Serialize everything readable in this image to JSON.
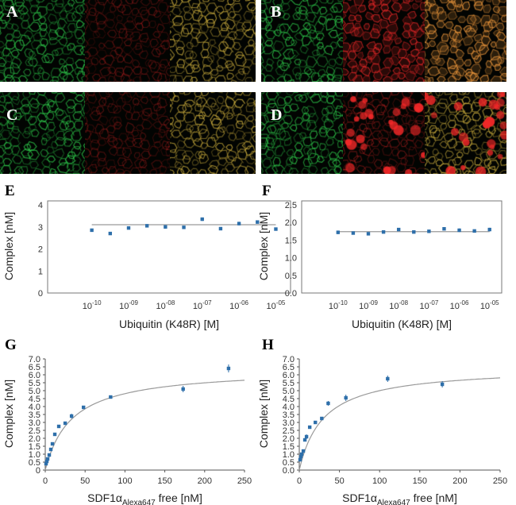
{
  "micrographs": [
    {
      "label": "A",
      "channels": [
        "green",
        "red",
        "merge"
      ],
      "red_intensity": "dim"
    },
    {
      "label": "B",
      "channels": [
        "green",
        "red",
        "merge"
      ],
      "red_intensity": "bright"
    },
    {
      "label": "C",
      "channels": [
        "green",
        "red",
        "merge"
      ],
      "red_intensity": "dim"
    },
    {
      "label": "D",
      "channels": [
        "green",
        "red",
        "merge"
      ],
      "red_intensity": "spotty"
    }
  ],
  "colors": {
    "green": "#2ec84a",
    "red": "#e12828",
    "merge": "#c8a63a",
    "points": "#2e6faa",
    "fit": "#9a9a9a",
    "plot_border": "#777777"
  },
  "chart_data": [
    {
      "panel": "E",
      "type": "scatter",
      "xscale": "log10",
      "x": [
        -10,
        -9.5,
        -9,
        -8.5,
        -8,
        -7.5,
        -7,
        -6.5,
        -6,
        -5.5,
        -5
      ],
      "y": [
        2.85,
        2.7,
        2.95,
        3.05,
        3.0,
        2.98,
        3.35,
        2.92,
        3.15,
        3.22,
        2.9
      ],
      "error": [
        0.07,
        0.06,
        0.06,
        0.07,
        0.08,
        0.05,
        0.08,
        0.06,
        0.08,
        0.07,
        0.06
      ],
      "fit": {
        "type": "constant",
        "value": 3.1
      },
      "xlabel": "Ubiquitin (K48R) [M]",
      "ylabel": "Complex [nM]",
      "ylim": [
        0,
        4
      ],
      "yticks": [
        "0",
        "1",
        "2",
        "3",
        "4"
      ],
      "xticks": [
        {
          "value": -10,
          "base": "10",
          "exp": "-10"
        },
        {
          "value": -9,
          "base": "10",
          "exp": "-09"
        },
        {
          "value": -8,
          "base": "10",
          "exp": "-08"
        },
        {
          "value": -7,
          "base": "10",
          "exp": "-07"
        },
        {
          "value": -6,
          "base": "10",
          "exp": "-06"
        },
        {
          "value": -5,
          "base": "10",
          "exp": "-05"
        }
      ],
      "xlim": [
        -11.2,
        -4.6
      ]
    },
    {
      "panel": "F",
      "type": "scatter",
      "xscale": "log10",
      "x": [
        -10,
        -9.5,
        -9,
        -8.5,
        -8,
        -7.5,
        -7,
        -6.5,
        -6,
        -5.5,
        -5
      ],
      "y": [
        1.72,
        1.7,
        1.68,
        1.73,
        1.8,
        1.73,
        1.75,
        1.82,
        1.78,
        1.76,
        1.8
      ],
      "error": [
        0.05,
        0.04,
        0.04,
        0.03,
        0.04,
        0.04,
        0.04,
        0.04,
        0.05,
        0.03,
        0.05
      ],
      "fit": {
        "type": "constant",
        "value": 1.74
      },
      "xlabel": "Ubiquitin (K48R) [M]",
      "ylabel": "Complex [nM]",
      "ylim": [
        0,
        2.5
      ],
      "yticks": [
        "0.0",
        "0.5",
        "1.0",
        "1.5",
        "2.0",
        "2.5"
      ],
      "xticks": [
        {
          "value": -10,
          "base": "10",
          "exp": "-10"
        },
        {
          "value": -9,
          "base": "10",
          "exp": "-09"
        },
        {
          "value": -8,
          "base": "10",
          "exp": "-08"
        },
        {
          "value": -7,
          "base": "10",
          "exp": "-07"
        },
        {
          "value": -6,
          "base": "10",
          "exp": "-06"
        },
        {
          "value": -5,
          "base": "10",
          "exp": "-05"
        }
      ],
      "xlim": [
        -11.2,
        -4.6
      ]
    },
    {
      "panel": "G",
      "type": "scatter",
      "x": [
        1,
        2,
        3,
        5,
        7,
        9,
        12,
        17,
        25,
        33,
        48,
        82,
        173,
        230
      ],
      "y": [
        0.4,
        0.55,
        0.7,
        0.95,
        1.3,
        1.65,
        2.25,
        2.75,
        2.95,
        3.4,
        3.95,
        4.6,
        5.1,
        6.4
      ],
      "error": [
        0.05,
        0.05,
        0.05,
        0.08,
        0.08,
        0.08,
        0.08,
        0.1,
        0.1,
        0.15,
        0.1,
        0.1,
        0.2,
        0.25
      ],
      "fit": {
        "type": "hyperbolic",
        "bmax": 6.4,
        "kd": 33,
        "x_max": 250
      },
      "xlabel_main": "SDF1α",
      "xlabel_sub": "Alexa647",
      "xlabel_tail": " free [nM]",
      "ylabel": "Complex [nM]",
      "ylim": [
        0,
        7
      ],
      "xlim": [
        0,
        250
      ],
      "yticks": [
        "0",
        "0.5",
        "1.0",
        "1.5",
        "2.0",
        "2.5",
        "3.0",
        "3.5",
        "4.0",
        "4.5",
        "5.0",
        "5.5",
        "6.0",
        "6.5",
        "7.0"
      ],
      "xticks": [
        "0",
        "50",
        "100",
        "150",
        "200",
        "250"
      ]
    },
    {
      "panel": "H",
      "type": "scatter",
      "x": [
        1,
        2,
        3,
        5,
        7,
        9,
        13,
        20,
        28,
        36,
        58,
        110,
        178
      ],
      "y": [
        0.65,
        0.85,
        1.0,
        1.2,
        1.9,
        2.1,
        2.7,
        3.0,
        3.25,
        4.2,
        4.55,
        5.75,
        5.4
      ],
      "error": [
        0.06,
        0.06,
        0.07,
        0.08,
        0.1,
        0.15,
        0.1,
        0.08,
        0.08,
        0.15,
        0.2,
        0.2,
        0.2
      ],
      "fit": {
        "type": "hyperbolic",
        "bmax": 6.5,
        "kd": 30,
        "x_max": 250
      },
      "xlabel_main": "SDF1α",
      "xlabel_sub": "Alexa647",
      "xlabel_tail": " free [nM]",
      "ylabel": "Complex [nM]",
      "ylim": [
        0,
        7
      ],
      "xlim": [
        0,
        250
      ],
      "yticks": [
        "0.0",
        "0.5",
        "1.0",
        "1.5",
        "2.0",
        "2.5",
        "3.0",
        "3.5",
        "4.0",
        "4.5",
        "5.0",
        "5.5",
        "6.0",
        "6.5",
        "7.0"
      ],
      "xticks": [
        "0",
        "50",
        "100",
        "150",
        "200",
        "250"
      ]
    }
  ]
}
